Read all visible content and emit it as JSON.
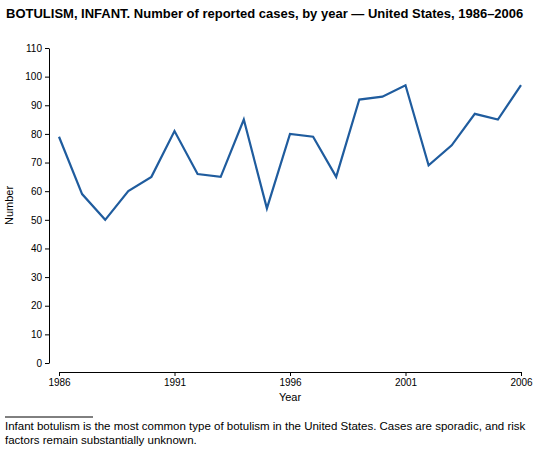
{
  "chart_data": {
    "type": "line",
    "title": "BOTULISM, INFANT. Number of reported cases, by year — United States, 1986–2006",
    "x_label": "Year",
    "y_label": "Number",
    "footnote": "Infant botulism is the most common type of botulism in the United States. Cases are sporadic, and risk factors remain substantially unknown.",
    "x": [
      1986,
      1987,
      1988,
      1989,
      1990,
      1991,
      1992,
      1993,
      1994,
      1995,
      1996,
      1997,
      1998,
      1999,
      2000,
      2001,
      2002,
      2003,
      2004,
      2005,
      2006
    ],
    "values": [
      79,
      59,
      50,
      60,
      65,
      81,
      66,
      65,
      85,
      54,
      80,
      79,
      65,
      92,
      93,
      97,
      69,
      76,
      87,
      85,
      97
    ],
    "color": "#1f5c9e",
    "xlim": [
      1986,
      2006
    ],
    "xticks": [
      1986,
      1991,
      1996,
      2001,
      2006
    ],
    "ylim": [
      0,
      110
    ],
    "yticks": [
      0,
      10,
      20,
      30,
      40,
      50,
      60,
      70,
      80,
      90,
      100,
      110
    ],
    "grid": false
  }
}
